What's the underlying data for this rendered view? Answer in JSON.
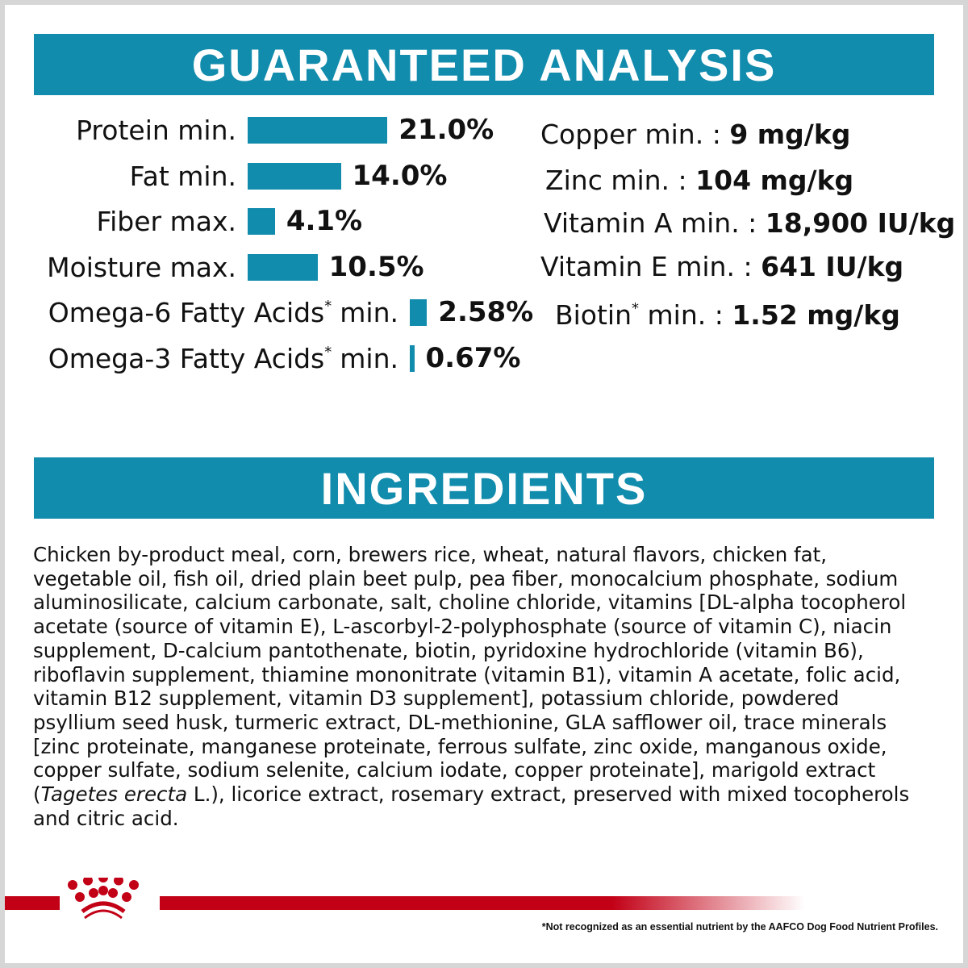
{
  "analysis": {
    "title": "GUARANTEED ANALYSIS",
    "left": [
      {
        "label": "Protein min.",
        "value": "21.0%",
        "percent": 21.0
      },
      {
        "label": "Fat min.",
        "value": "14.0%",
        "percent": 14.0
      },
      {
        "label": "Fiber max.",
        "value": "4.1%",
        "percent": 4.1
      },
      {
        "label": "Moisture max.",
        "value": "10.5%",
        "percent": 10.5
      },
      {
        "label": "Omega-6 Fatty Acids",
        "suffix": "min.",
        "value": "2.58%",
        "percent": 2.58
      },
      {
        "label": "Omega-3 Fatty Acids",
        "suffix": "min.",
        "value": "0.67%",
        "percent": 0.67
      }
    ],
    "asterisk": "*",
    "right": [
      {
        "label": "Copper min. : ",
        "value": "9 mg/kg"
      },
      {
        "label": "Zinc min. : ",
        "value": "104 mg/kg"
      },
      {
        "label": "Vitamin A min. : ",
        "value": "18,900 IU/kg"
      },
      {
        "label": "Vitamin E min. : ",
        "value": "641 IU/kg"
      },
      {
        "label": "Biotin",
        "suffix": " min. : ",
        "value": "1.52 mg/kg"
      }
    ]
  },
  "ingredients": {
    "title": "INGREDIENTS",
    "lines": [
      "Chicken by-product meal, corn, brewers rice, wheat, natural flavors, chicken fat,",
      "vegetable oil, fish oil, dried plain beet pulp, pea fiber, monocalcium phosphate, sodium",
      "aluminosilicate, calcium carbonate, salt, choline chloride, vitamins [DL-alpha tocopherol",
      "acetate (source of vitamin E), L-ascorbyl-2-polyphosphate (source of vitamin C), niacin",
      "supplement, D-calcium pantothenate, biotin, pyridoxine hydrochloride (vitamin B6),",
      "riboflavin supplement, thiamine mononitrate (vitamin B1), vitamin A acetate, folic acid,",
      "vitamin B12 supplement, vitamin D3 supplement], potassium chloride, powdered",
      "psyllium seed husk, turmeric extract, DL-methionine, GLA safflower oil, trace minerals",
      "[zinc proteinate, manganese proteinate, ferrous sulfate, zinc oxide, manganous oxide,",
      "copper sulfate, sodium selenite, calcium iodate, copper proteinate], marigold extract"
    ],
    "line12_start": "(",
    "line12_italic": "Tagetes erecta",
    "line12_rest": " L.), licorice extract, rosemary extract, preserved with mixed tocopherols",
    "line13": "and citric acid."
  },
  "footnote": "*Not recognized as an essential nutrient by the AAFCO Dog Food Nutrient Profiles.",
  "colors": {
    "accent": "#128cad",
    "brand_red": "#c20016"
  }
}
